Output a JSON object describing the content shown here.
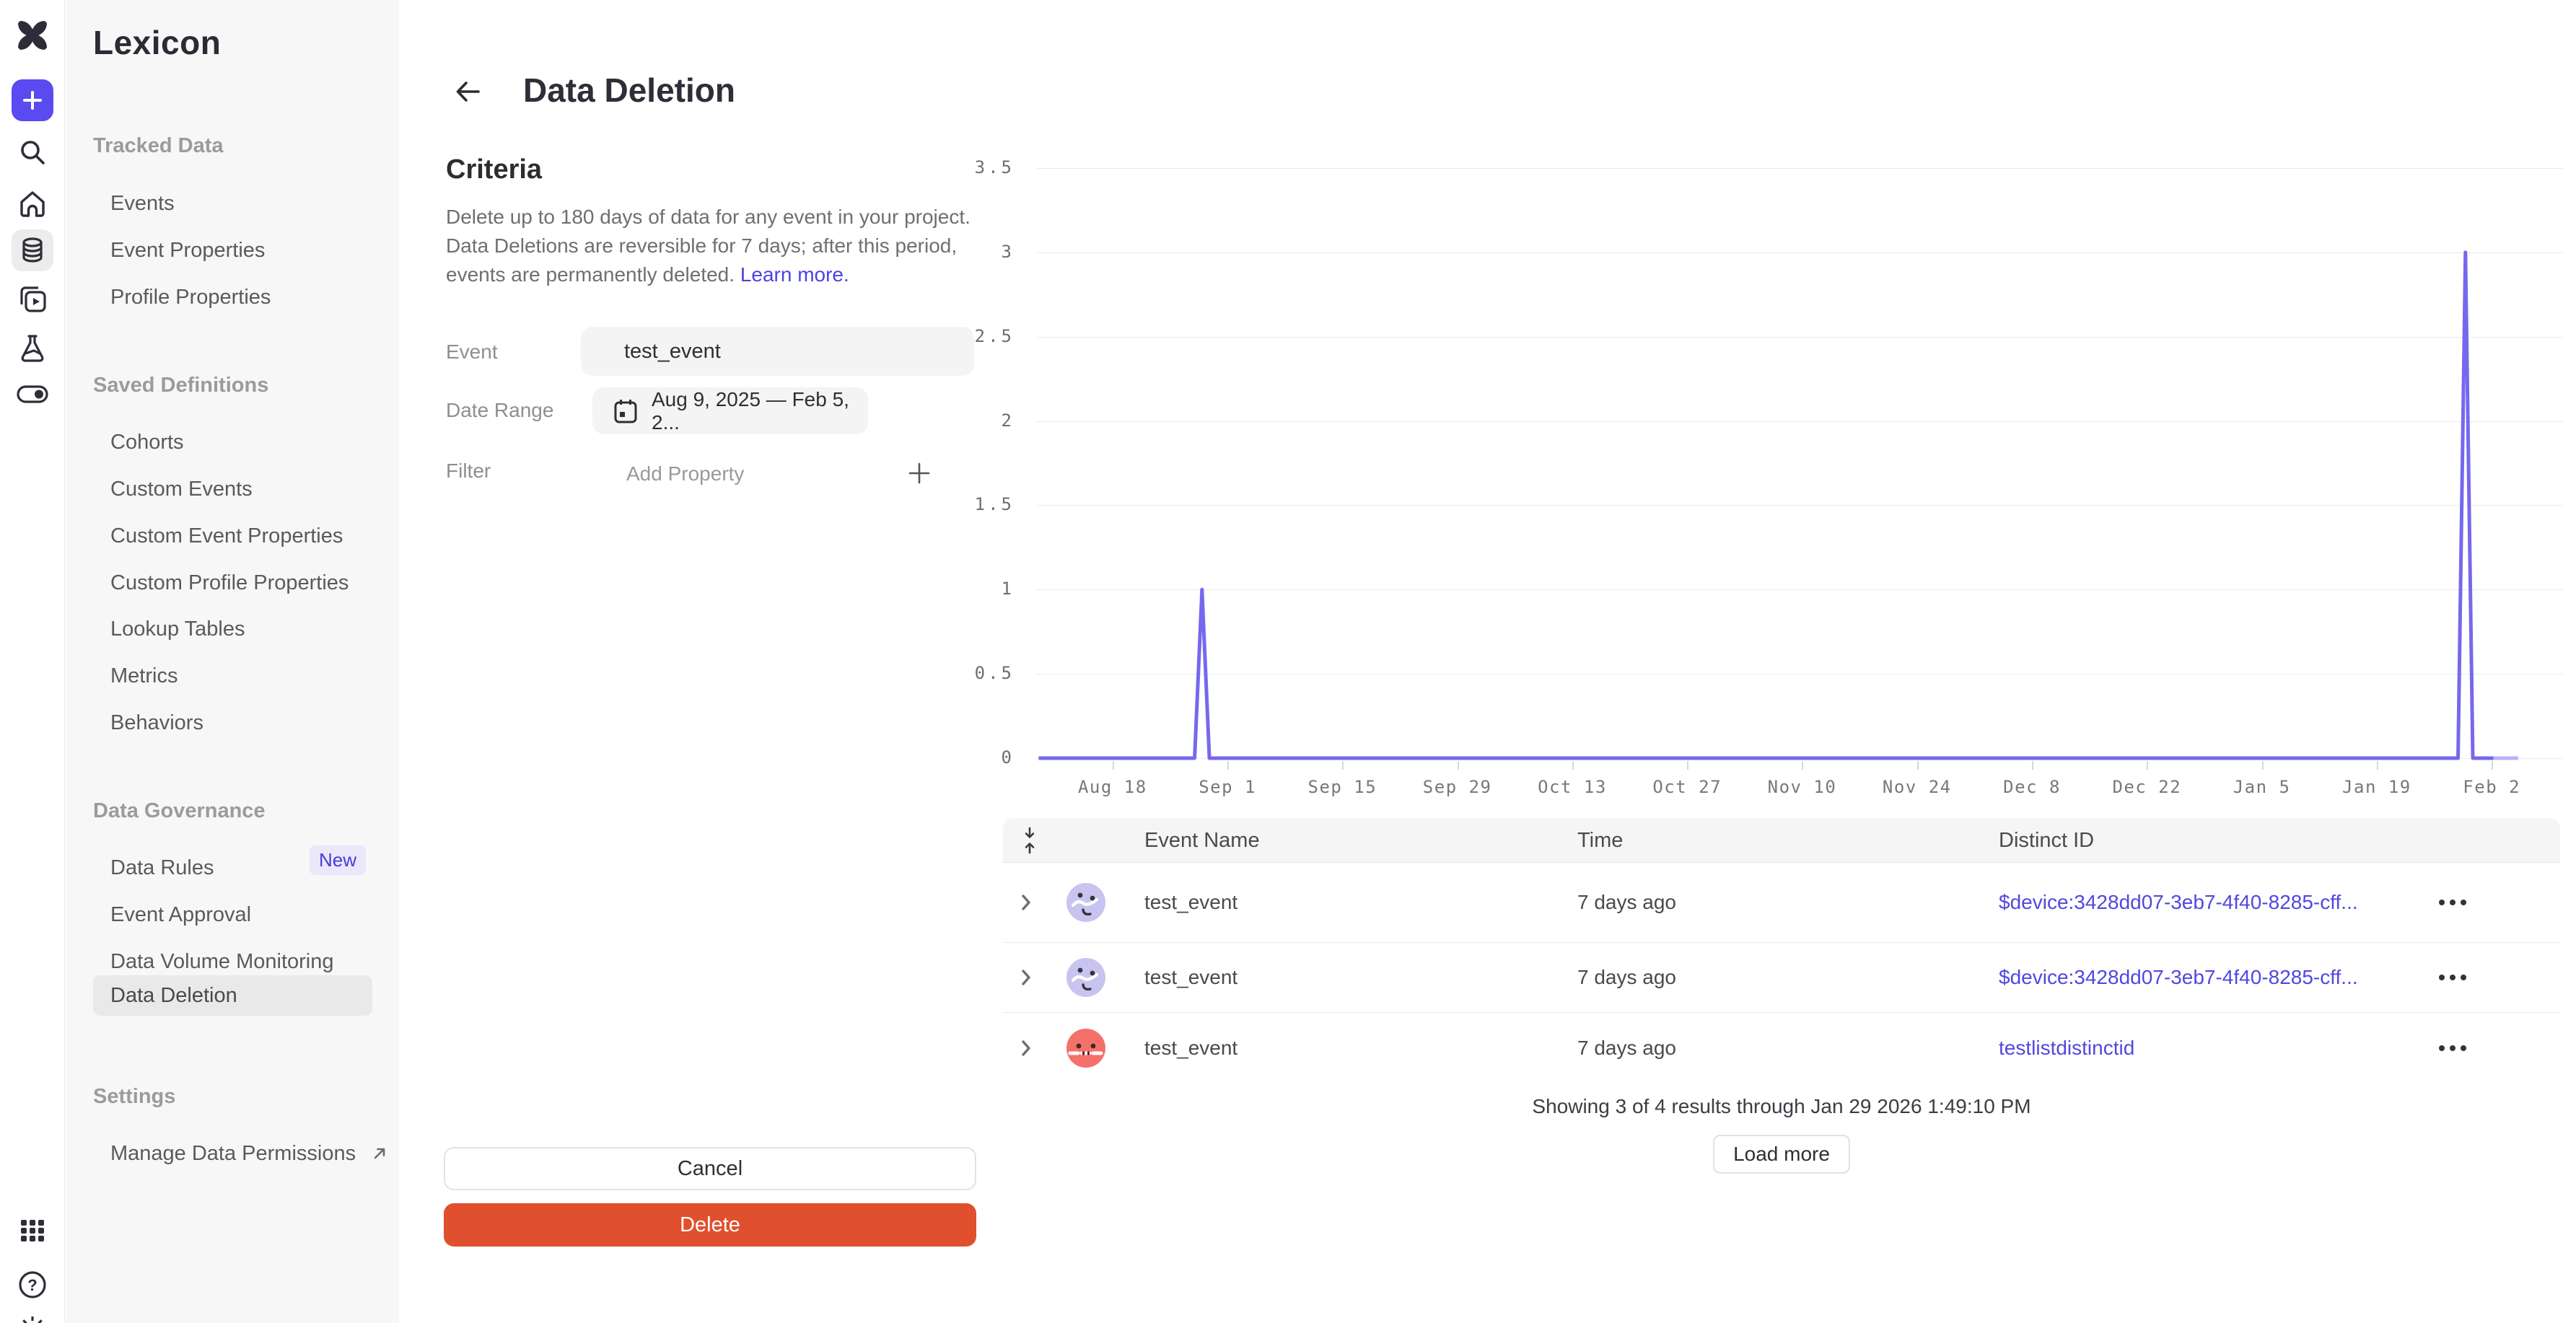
{
  "colors": {
    "accent_purple": "#5a4bf0",
    "link_purple": "#4c41e2",
    "chart_line": "#7668ee",
    "chart_line_incomplete": "#b9b2f6",
    "delete_red": "#e1502e",
    "badge_bg": "#eae8fa",
    "badge_text": "#4a39e0"
  },
  "sidebar": {
    "title": "Lexicon",
    "sections": [
      {
        "heading": "Tracked Data",
        "items": [
          {
            "label": "Events"
          },
          {
            "label": "Event Properties"
          },
          {
            "label": "Profile Properties"
          }
        ]
      },
      {
        "heading": "Saved Definitions",
        "items": [
          {
            "label": "Cohorts"
          },
          {
            "label": "Custom Events"
          },
          {
            "label": "Custom Event Properties"
          },
          {
            "label": "Custom Profile Properties"
          },
          {
            "label": "Lookup Tables"
          },
          {
            "label": "Metrics"
          },
          {
            "label": "Behaviors"
          }
        ]
      },
      {
        "heading": "Data Governance",
        "items": [
          {
            "label": "Data Rules",
            "badge": "New"
          },
          {
            "label": "Event Approval"
          },
          {
            "label": "Data Volume Monitoring"
          },
          {
            "label": "Data Deletion",
            "selected": true
          }
        ]
      },
      {
        "heading": "Settings",
        "items": [
          {
            "label": "Manage Data Permissions",
            "external": true
          }
        ]
      }
    ]
  },
  "header": {
    "title": "Data Deletion"
  },
  "criteria": {
    "heading": "Criteria",
    "desc_lines": [
      "Delete up to 180 days of data for any event in your project.",
      "Data Deletions are reversible for 7 days; after this period,",
      "events are permanently deleted."
    ],
    "link_label": "Learn more.",
    "fields": {
      "event_label": "Event",
      "event_value": "test_event",
      "date_label": "Date Range",
      "date_value": "Aug 9, 2025 — Feb 5, 2...",
      "filter_label": "Filter",
      "filter_placeholder": "Add Property"
    },
    "actions": {
      "cancel": "Cancel",
      "delete": "Delete"
    }
  },
  "chart_data": {
    "type": "line",
    "title": "",
    "xlabel": "",
    "ylabel": "",
    "x_range": [
      "Aug 9, 2025",
      "Feb 5, 2026"
    ],
    "x_ticks": [
      "Aug 18",
      "Sep 1",
      "Sep 15",
      "Sep 29",
      "Oct 13",
      "Oct 27",
      "Nov 10",
      "Nov 24",
      "Dec 8",
      "Dec 22",
      "Jan 5",
      "Jan 19",
      "Feb 2"
    ],
    "y_ticks": [
      0,
      0.5,
      1,
      1.5,
      2,
      2.5,
      3,
      3.5
    ],
    "ylim": [
      0,
      3.5
    ],
    "grid": "horizontal",
    "legend": "none",
    "series": [
      {
        "name": "test_event",
        "points": [
          {
            "date": "Aug 9",
            "day": 0,
            "value": 0
          },
          {
            "date": "Aug 28",
            "day": 19,
            "value": 0
          },
          {
            "date": "Aug 29",
            "day": 19.9,
            "value": 1
          },
          {
            "date": "Aug 30",
            "day": 20.8,
            "value": 0
          },
          {
            "date": "Jan 29",
            "day": 172.9,
            "value": 0
          },
          {
            "date": "Jan 30",
            "day": 173.8,
            "value": 3
          },
          {
            "date": "Jan 31",
            "day": 174.7,
            "value": 0
          },
          {
            "date": "Feb 5",
            "day": 180.2,
            "value": 0
          }
        ]
      }
    ],
    "incomplete_segment": {
      "from_day": 177.2,
      "to_day": 180.2,
      "value": 0
    }
  },
  "table": {
    "columns": [
      "Event Name",
      "Time",
      "Distinct ID"
    ],
    "rows": [
      {
        "event": "test_event",
        "time": "7 days ago",
        "distinct_id": "$device:3428dd07-3eb7-4f40-8285-cff...",
        "avatar": "lavender"
      },
      {
        "event": "test_event",
        "time": "7 days ago",
        "distinct_id": "$device:3428dd07-3eb7-4f40-8285-cff...",
        "avatar": "lavender"
      },
      {
        "event": "test_event",
        "time": "7 days ago",
        "distinct_id": "testlistdistinctid",
        "avatar": "red"
      }
    ],
    "footer": "Showing 3 of 4 results through Jan 29 2026 1:49:10 PM",
    "load_more": "Load more"
  }
}
